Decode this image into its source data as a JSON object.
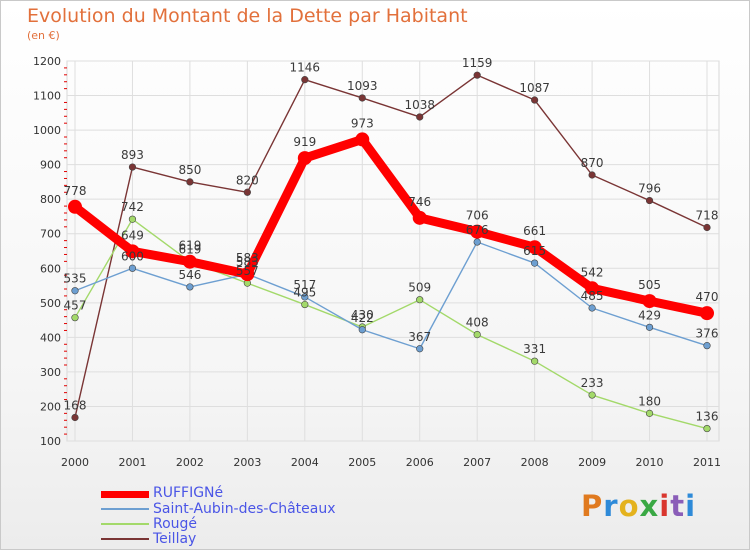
{
  "title": "Evolution du Montant de la Dette par Habitant",
  "unit": "(en €)",
  "logo": {
    "text": "Proxiti",
    "colors": [
      "#e07a1f",
      "#2e8ad8",
      "#e4b21d",
      "#3aa844",
      "#d9362e",
      "#8a5db8",
      "#2e8ad8"
    ]
  },
  "chart_data": {
    "type": "line",
    "x": [
      "2000",
      "2001",
      "2002",
      "2003",
      "2004",
      "2005",
      "2006",
      "2007",
      "2008",
      "2009",
      "2010",
      "2011"
    ],
    "ylim": [
      100,
      1200
    ],
    "yticks": [
      100,
      200,
      300,
      400,
      500,
      600,
      700,
      800,
      900,
      1000,
      1100,
      1200
    ],
    "grid": true,
    "legend_position": "bottom-left",
    "series": [
      {
        "name": "Teillay",
        "color": "#7a3535",
        "values": [
          168,
          893,
          850,
          820,
          1146,
          1093,
          1038,
          1159,
          1087,
          870,
          796,
          718
        ]
      },
      {
        "name": "Rougé",
        "color": "#a3d96a",
        "values": [
          457,
          742,
          619,
          557,
          495,
          430,
          509,
          408,
          331,
          233,
          180,
          136
        ]
      },
      {
        "name": "Saint-Aubin-des-Châteaux",
        "color": "#6d9fd1",
        "values": [
          535,
          600,
          546,
          583,
          517,
          422,
          367,
          676,
          615,
          485,
          429,
          376
        ]
      },
      {
        "name": "RUFFIGNé",
        "color": "#ff0000",
        "values": [
          778,
          649,
          619,
          583,
          919,
          973,
          746,
          706,
          661,
          542,
          505,
          470
        ]
      }
    ]
  },
  "legend": [
    {
      "name": "RUFFIGNé",
      "color": "#ff0000"
    },
    {
      "name": "Saint-Aubin-des-Châteaux",
      "color": "#6d9fd1"
    },
    {
      "name": "Rougé",
      "color": "#a3d96a"
    },
    {
      "name": "Teillay",
      "color": "#7a3535"
    }
  ]
}
